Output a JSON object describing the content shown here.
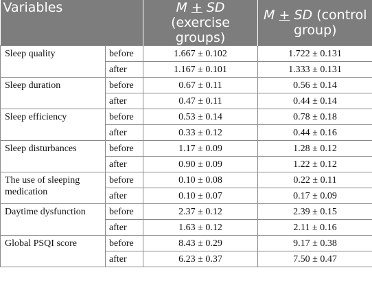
{
  "header": {
    "variables": "Variables",
    "exercise_prefix_m": "M",
    "exercise_pm": "+",
    "exercise_sd": "SD",
    "exercise_suffix": "(exercise groups)",
    "control_prefix_m": "M",
    "control_pm": "+",
    "control_sd": "SD",
    "control_suffix": "(control group)"
  },
  "rows": [
    {
      "variable": "Sleep quality",
      "before": {
        "time": "before",
        "exercise": "1.667 ± 0.102",
        "control": "1.722 ± 0.131"
      },
      "after": {
        "time": "after",
        "exercise": "1.167 ± 0.101",
        "control": "1.333 ± 0.131"
      }
    },
    {
      "variable": "Sleep duration",
      "before": {
        "time": "before",
        "exercise": "0.67 ± 0.11",
        "control": "0.56 ± 0.14"
      },
      "after": {
        "time": "after",
        "exercise": "0.47 ± 0.11",
        "control": "0.44 ± 0.14"
      }
    },
    {
      "variable": "Sleep efficiency",
      "before": {
        "time": "before",
        "exercise": "0.53 ± 0.14",
        "control": "0.78 ± 0.18"
      },
      "after": {
        "time": "after",
        "exercise": "0.33 ± 0.12",
        "control": "0.44 ± 0.16"
      }
    },
    {
      "variable": "Sleep disturbances",
      "before": {
        "time": "before",
        "exercise": "1.17 ± 0.09",
        "control": "1.28 ± 0.12"
      },
      "after": {
        "time": "after",
        "exercise": "0.90 ± 0.09",
        "control": "1.22 ± 0.12"
      }
    },
    {
      "variable": "The use of sleeping medication",
      "before": {
        "time": "before",
        "exercise": "0.10 ± 0.08",
        "control": "0.22 ± 0.11"
      },
      "after": {
        "time": "after",
        "exercise": "0.10 ± 0.07",
        "control": "0.17 ± 0.09"
      }
    },
    {
      "variable": "Daytime dysfunction",
      "before": {
        "time": "before",
        "exercise": "2.37 ± 0.12",
        "control": "2.39 ± 0.15"
      },
      "after": {
        "time": "after",
        "exercise": "1.63 ± 0.12",
        "control": "2.11 ± 0.16"
      }
    },
    {
      "variable": "Global PSQI score",
      "before": {
        "time": "before",
        "exercise": "8.43 ± 0.29",
        "control": "9.17 ± 0.38"
      },
      "after": {
        "time": "after",
        "exercise": "6.23 ± 0.37",
        "control": "7.50 ± 0.47"
      }
    }
  ]
}
